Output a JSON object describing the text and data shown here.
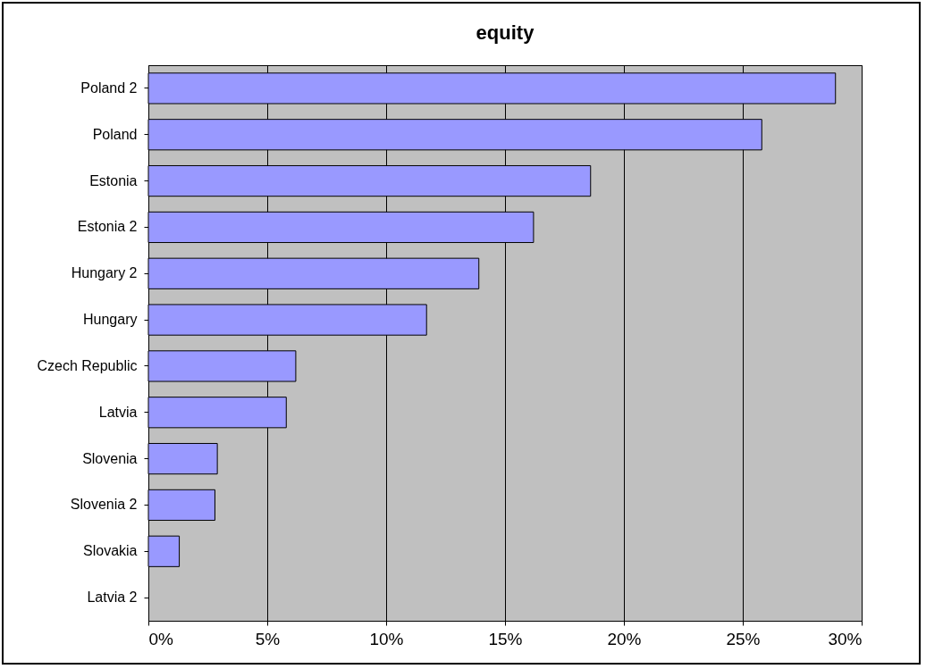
{
  "chart_data": {
    "type": "bar",
    "orientation": "horizontal",
    "title": "equity",
    "categories": [
      "Poland 2",
      "Poland",
      "Estonia",
      "Estonia 2",
      "Hungary 2",
      "Hungary",
      "Czech Republic",
      "Latvia",
      "Slovenia",
      "Slovenia 2",
      "Slovakia",
      "Latvia 2"
    ],
    "values": [
      28.9,
      25.8,
      18.6,
      16.2,
      13.9,
      11.7,
      6.2,
      5.8,
      2.9,
      2.8,
      1.3,
      0
    ],
    "color": "#9999ff",
    "xlim": [
      0,
      30
    ],
    "xticks": [
      {
        "value": 0,
        "label": "0%"
      },
      {
        "value": 5,
        "label": "5%"
      },
      {
        "value": 10,
        "label": "10%"
      },
      {
        "value": 15,
        "label": "15%"
      },
      {
        "value": 20,
        "label": "20%"
      },
      {
        "value": 25,
        "label": "25%"
      },
      {
        "value": 30,
        "label": "30%"
      }
    ],
    "grid": "x"
  }
}
